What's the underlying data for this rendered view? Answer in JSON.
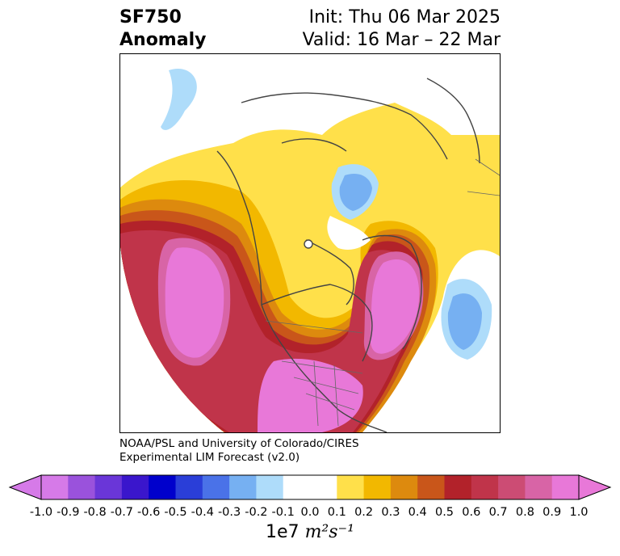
{
  "title": {
    "field": "SF750",
    "kind": "Anomaly",
    "init": "Init: Thu 06 Mar 2025",
    "valid": "Valid: 16 Mar – 22 Mar"
  },
  "credit": {
    "line1": "NOAA/PSL and University of Colorado/CIRES",
    "line2": "Experimental LIM Forecast (v2.0)"
  },
  "colorbar": {
    "ticks": [
      "-1.0",
      "-0.9",
      "-0.8",
      "-0.7",
      "-0.6",
      "-0.5",
      "-0.4",
      "-0.3",
      "-0.2",
      "-0.1",
      "0.0",
      "0.1",
      "0.2",
      "0.3",
      "0.4",
      "0.5",
      "0.6",
      "0.7",
      "0.8",
      "0.9",
      "1.0"
    ],
    "colors": [
      "#d67ae8",
      "#9a52dc",
      "#6a36d8",
      "#3a16cc",
      "#0000cc",
      "#2a3ed8",
      "#4a72e8",
      "#76b0f2",
      "#aedcfa",
      "#ffffff",
      "#ffffff",
      "#ffe04a",
      "#f2b800",
      "#dd8a0e",
      "#c9561a",
      "#b2222a",
      "#c0344a",
      "#cc4c74",
      "#d864a6",
      "#e878d8"
    ],
    "label_prefix": "1e7",
    "label_unit": "m²s⁻¹"
  },
  "map": {
    "projection": "north-polar-stereographic",
    "region": "Northern Hemisphere / North America",
    "field_colors": {
      "positive_high": "#e878d8",
      "positive_mid": "#b2222a",
      "positive_low": "#ffe04a",
      "negative_low": "#aedcfa",
      "negative_mid": "#76b0f2"
    }
  }
}
